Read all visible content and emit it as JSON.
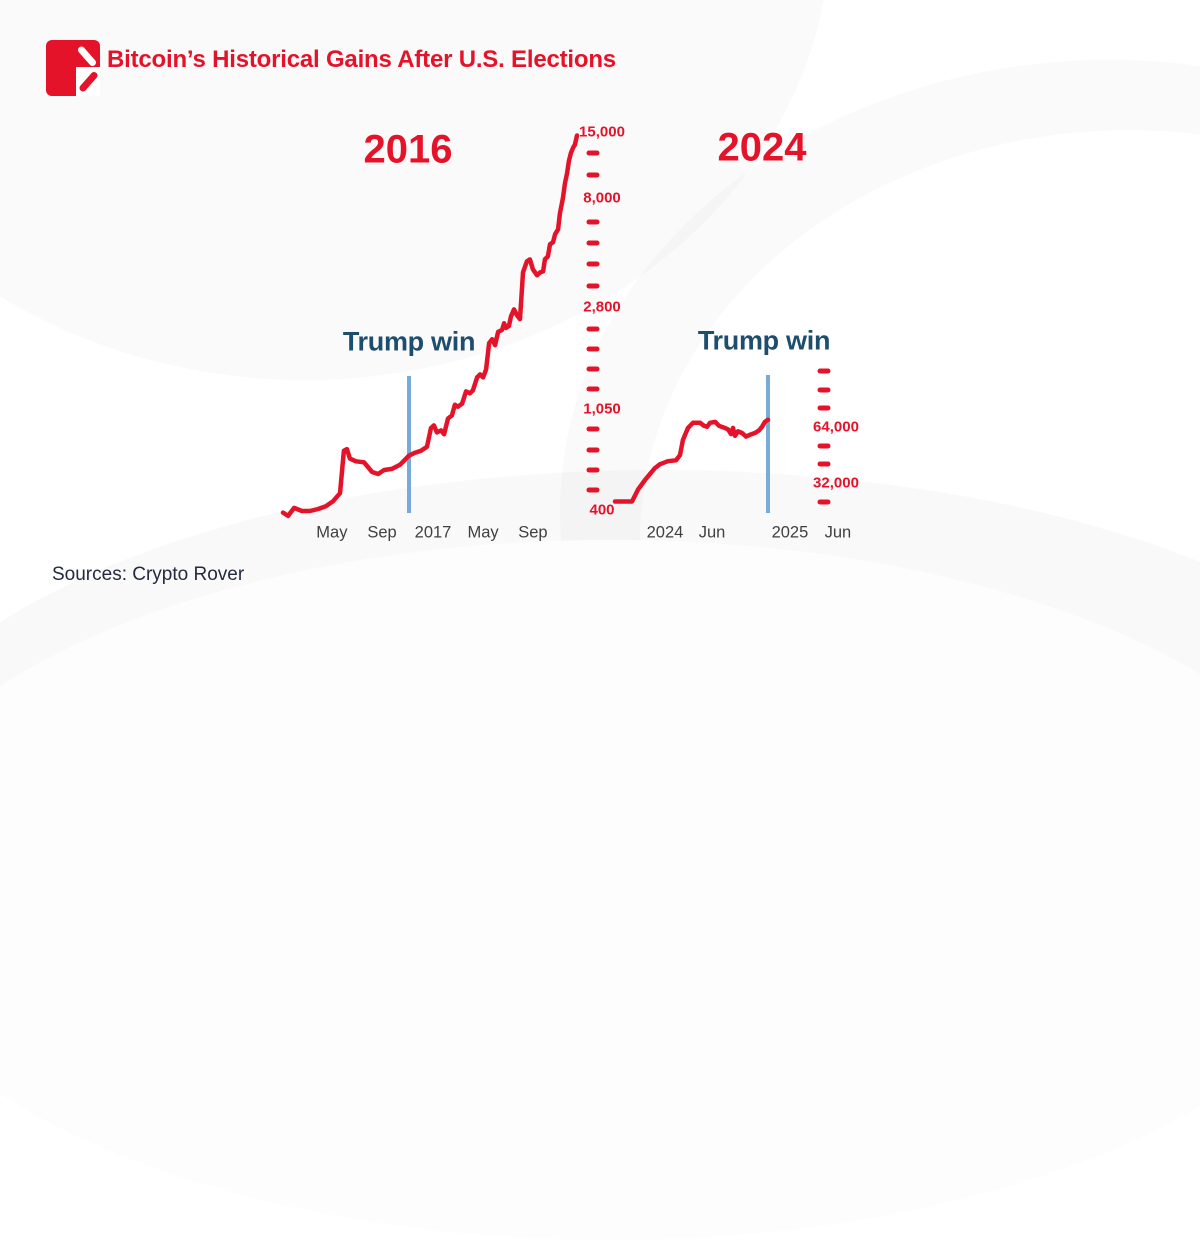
{
  "header": {
    "title": "Bitcoin’s Historical Gains After U.S. Elections"
  },
  "footer": {
    "sources": "Sources: Crypto Rover"
  },
  "colors": {
    "accent_red": "#e5132a",
    "navy": "#1d4e6e",
    "event_line_blue": "#77abd9",
    "axis_text_gray": "#404043"
  },
  "chart_data": [
    {
      "type": "line",
      "title": "2016",
      "series_name": "Bitcoin price (USD)",
      "annotation": "Trump win",
      "annotation_x_frac": 0.42,
      "yscale": "log",
      "ylim": [
        400,
        15000
      ],
      "grid": false,
      "legend": "none",
      "x_tick_labels": [
        {
          "text": "May",
          "pos": 0.163
        },
        {
          "text": "Sep",
          "pos": 0.33
        },
        {
          "text": "2017",
          "pos": 0.5
        },
        {
          "text": "May",
          "pos": 0.667
        },
        {
          "text": "Sep",
          "pos": 0.833
        }
      ],
      "y_axis": {
        "labels": [
          {
            "text": "400",
            "value": 400
          },
          {
            "text": "1,050",
            "value": 1050
          },
          {
            "text": "2,800",
            "value": 2800
          },
          {
            "text": "8,000",
            "value": 8000
          },
          {
            "text": "15,000",
            "value": 15000
          }
        ],
        "minor_tick_values": [
          485,
          589,
          714,
          866,
          1274,
          1546,
          1876,
          2277,
          3436,
          4216,
          5174,
          6349,
          9886,
          12217
        ]
      },
      "points": [
        [
          0.0,
          390
        ],
        [
          0.017,
          378
        ],
        [
          0.037,
          408
        ],
        [
          0.063,
          396
        ],
        [
          0.09,
          396
        ],
        [
          0.117,
          404
        ],
        [
          0.143,
          415
        ],
        [
          0.167,
          435
        ],
        [
          0.19,
          470
        ],
        [
          0.203,
          706
        ],
        [
          0.213,
          717
        ],
        [
          0.223,
          655
        ],
        [
          0.243,
          638
        ],
        [
          0.27,
          632
        ],
        [
          0.297,
          576
        ],
        [
          0.317,
          565
        ],
        [
          0.337,
          587
        ],
        [
          0.363,
          593
        ],
        [
          0.39,
          617
        ],
        [
          0.42,
          674
        ],
        [
          0.44,
          693
        ],
        [
          0.46,
          706
        ],
        [
          0.48,
          734
        ],
        [
          0.493,
          876
        ],
        [
          0.503,
          900
        ],
        [
          0.513,
          842
        ],
        [
          0.527,
          858
        ],
        [
          0.537,
          827
        ],
        [
          0.55,
          962
        ],
        [
          0.563,
          990
        ],
        [
          0.573,
          1098
        ],
        [
          0.583,
          1077
        ],
        [
          0.597,
          1108
        ],
        [
          0.61,
          1247
        ],
        [
          0.623,
          1224
        ],
        [
          0.633,
          1259
        ],
        [
          0.647,
          1426
        ],
        [
          0.657,
          1468
        ],
        [
          0.667,
          1426
        ],
        [
          0.677,
          1539
        ],
        [
          0.687,
          1980
        ],
        [
          0.697,
          2056
        ],
        [
          0.707,
          1944
        ],
        [
          0.717,
          2205
        ],
        [
          0.73,
          2247
        ],
        [
          0.737,
          2394
        ],
        [
          0.743,
          2290
        ],
        [
          0.753,
          2333
        ],
        [
          0.76,
          2561
        ],
        [
          0.77,
          2736
        ],
        [
          0.78,
          2585
        ],
        [
          0.79,
          2493
        ],
        [
          0.8,
          3901
        ],
        [
          0.813,
          4337
        ],
        [
          0.823,
          4421
        ],
        [
          0.833,
          4018
        ],
        [
          0.847,
          3795
        ],
        [
          0.857,
          3901
        ],
        [
          0.867,
          3938
        ],
        [
          0.873,
          4421
        ],
        [
          0.883,
          4550
        ],
        [
          0.89,
          5106
        ],
        [
          0.9,
          5205
        ],
        [
          0.907,
          5625
        ],
        [
          0.917,
          5899
        ],
        [
          0.923,
          6860
        ],
        [
          0.933,
          7943
        ],
        [
          0.94,
          9184
        ],
        [
          0.947,
          10109
        ],
        [
          0.953,
          11351
        ],
        [
          0.96,
          12287
        ],
        [
          0.967,
          12891
        ],
        [
          0.973,
          13265
        ],
        [
          0.98,
          14500
        ]
      ]
    },
    {
      "type": "line",
      "title": "2024",
      "series_name": "Bitcoin price (USD)",
      "annotation": "Trump win",
      "annotation_x_frac": 1.0,
      "yscale": "log",
      "ylim": [
        25000,
        128000
      ],
      "grid": false,
      "legend": "none",
      "x_tick_labels": [
        {
          "text": "2024",
          "pos": 0.204
        },
        {
          "text": "Jun",
          "pos": 0.396
        },
        {
          "text": "2025",
          "pos": 0.714
        },
        {
          "text": "Jun",
          "pos": 0.91
        }
      ],
      "y_axis": {
        "labels": [
          {
            "text": "32,000",
            "value": 32000
          },
          {
            "text": "64,000",
            "value": 64000
          }
        ],
        "minor_tick_values": [
          25398,
          40317,
          50797,
          80635,
          101594,
          128000
        ]
      },
      "points": [
        [
          0.0,
          25450
        ],
        [
          0.111,
          25450
        ],
        [
          0.15,
          29500
        ],
        [
          0.196,
          33200
        ],
        [
          0.229,
          35800
        ],
        [
          0.261,
          38500
        ],
        [
          0.294,
          40400
        ],
        [
          0.346,
          41900
        ],
        [
          0.399,
          42400
        ],
        [
          0.425,
          45200
        ],
        [
          0.444,
          54500
        ],
        [
          0.477,
          63300
        ],
        [
          0.51,
          67400
        ],
        [
          0.556,
          67400
        ],
        [
          0.582,
          65000
        ],
        [
          0.601,
          64200
        ],
        [
          0.621,
          67400
        ],
        [
          0.654,
          68200
        ],
        [
          0.68,
          65000
        ],
        [
          0.712,
          63500
        ],
        [
          0.739,
          62100
        ],
        [
          0.758,
          58600
        ],
        [
          0.771,
          63300
        ],
        [
          0.784,
          57400
        ],
        [
          0.804,
          60700
        ],
        [
          0.83,
          59400
        ],
        [
          0.856,
          56800
        ],
        [
          0.882,
          58100
        ],
        [
          0.915,
          59400
        ],
        [
          0.941,
          61400
        ],
        [
          0.961,
          64200
        ],
        [
          0.98,
          68200
        ],
        [
          1.0,
          70000
        ]
      ]
    }
  ]
}
